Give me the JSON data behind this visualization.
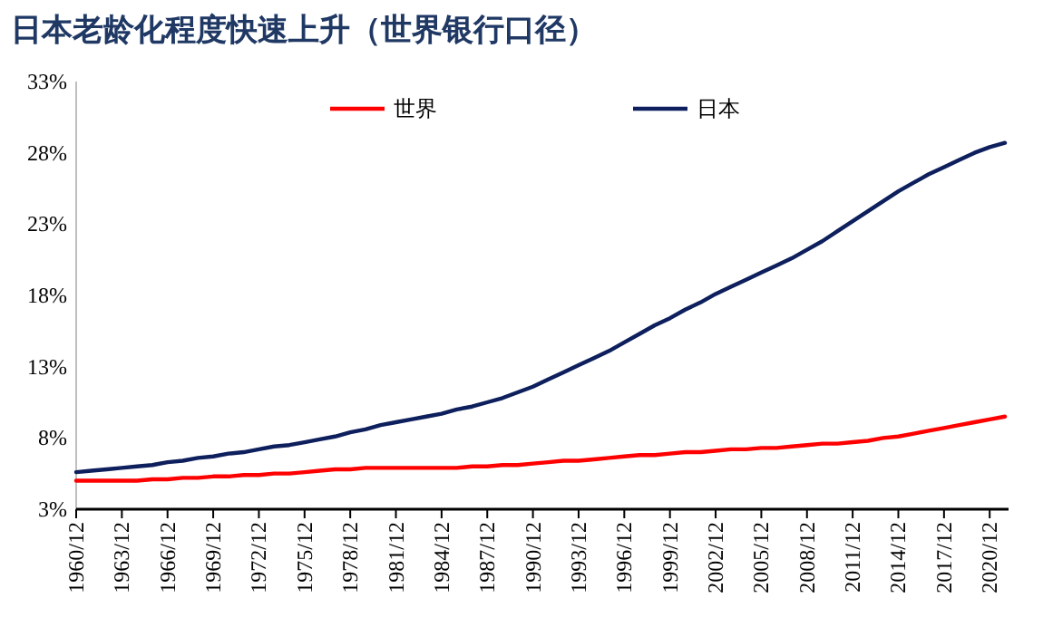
{
  "chart_data": {
    "type": "line",
    "title": "日本老龄化程度快速上升（世界银行口径）",
    "categories": [
      "1960/12",
      null,
      null,
      "1963/12",
      null,
      null,
      "1966/12",
      null,
      null,
      "1969/12",
      null,
      null,
      "1972/12",
      null,
      null,
      "1975/12",
      null,
      null,
      "1978/12",
      null,
      null,
      "1981/12",
      null,
      null,
      "1984/12",
      null,
      null,
      "1987/12",
      null,
      null,
      "1990/12",
      null,
      null,
      "1993/12",
      null,
      null,
      "1996/12",
      null,
      null,
      "1999/12",
      null,
      null,
      "2002/12",
      null,
      null,
      "2005/12",
      null,
      null,
      "2008/12",
      null,
      null,
      "2011/12",
      null,
      null,
      "2014/12",
      null,
      null,
      "2017/12",
      null,
      null,
      "2020/12",
      null
    ],
    "series": [
      {
        "name": "世界",
        "color": "#ff0000",
        "values": [
          5.0,
          5.0,
          5.0,
          5.0,
          5.0,
          5.1,
          5.1,
          5.2,
          5.2,
          5.3,
          5.3,
          5.4,
          5.4,
          5.5,
          5.5,
          5.6,
          5.7,
          5.8,
          5.8,
          5.9,
          5.9,
          5.9,
          5.9,
          5.9,
          5.9,
          5.9,
          6.0,
          6.0,
          6.1,
          6.1,
          6.2,
          6.3,
          6.4,
          6.4,
          6.5,
          6.6,
          6.7,
          6.8,
          6.8,
          6.9,
          7.0,
          7.0,
          7.1,
          7.2,
          7.2,
          7.3,
          7.3,
          7.4,
          7.5,
          7.6,
          7.6,
          7.7,
          7.8,
          8.0,
          8.1,
          8.3,
          8.5,
          8.7,
          8.9,
          9.1,
          9.3,
          9.5
        ]
      },
      {
        "name": "日本",
        "color": "#0d1f5c",
        "values": [
          5.6,
          5.7,
          5.8,
          5.9,
          6.0,
          6.1,
          6.3,
          6.4,
          6.6,
          6.7,
          6.9,
          7.0,
          7.2,
          7.4,
          7.5,
          7.7,
          7.9,
          8.1,
          8.4,
          8.6,
          8.9,
          9.1,
          9.3,
          9.5,
          9.7,
          10.0,
          10.2,
          10.5,
          10.8,
          11.2,
          11.6,
          12.1,
          12.6,
          13.1,
          13.6,
          14.1,
          14.7,
          15.3,
          15.9,
          16.4,
          17.0,
          17.5,
          18.1,
          18.6,
          19.1,
          19.6,
          20.1,
          20.6,
          21.2,
          21.8,
          22.5,
          23.2,
          23.9,
          24.6,
          25.3,
          25.9,
          26.5,
          27.0,
          27.5,
          28.0,
          28.4,
          28.7
        ]
      }
    ],
    "ylim": [
      3,
      33
    ],
    "yticks": [
      {
        "value": 3,
        "label": "3%"
      },
      {
        "value": 8,
        "label": "8%"
      },
      {
        "value": 13,
        "label": "13%"
      },
      {
        "value": 18,
        "label": "18%"
      },
      {
        "value": 23,
        "label": "23%"
      },
      {
        "value": 28,
        "label": "28%"
      },
      {
        "value": 33,
        "label": "33%"
      }
    ],
    "legend": "top",
    "grid": false
  }
}
